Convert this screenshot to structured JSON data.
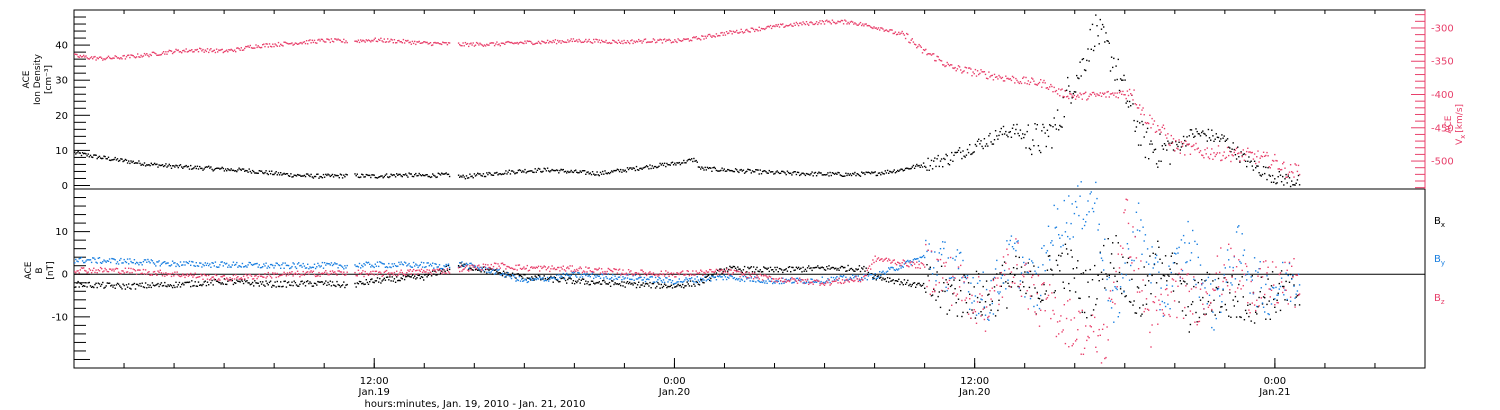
{
  "xaxis": {
    "title": "hours:minutes, Jan. 19, 2010 - Jan. 21, 2010",
    "range_hours": [
      0,
      54
    ],
    "ticks": [
      {
        "t": 12,
        "time": "12:00",
        "date": "Jan.19"
      },
      {
        "t": 24,
        "time": "0:00",
        "date": "Jan.20"
      },
      {
        "t": 36,
        "time": "12:00",
        "date": "Jan.20"
      },
      {
        "t": 48,
        "time": "0:00",
        "date": "Jan.21"
      }
    ]
  },
  "colors": {
    "black": "#000000",
    "blue": "#1a7fe0",
    "pink": "#e8406b"
  },
  "chart_data": [
    {
      "type": "scatter",
      "panel": "top",
      "ylabel_left": [
        "ACE",
        "Ion Density",
        "[cm⁻³]"
      ],
      "ylabel_right": [
        "ACE",
        "V",
        "[km/s]"
      ],
      "ylabel_right_sub": "x",
      "ylim_left": [
        -1,
        50
      ],
      "ylim_right": [
        -542,
        -273
      ],
      "yticks_left": [
        0,
        10,
        20,
        30,
        40
      ],
      "yticks_right": [
        -300,
        -350,
        -400,
        -450,
        -500
      ],
      "series": [
        {
          "name": "Ion Density",
          "axis": "left",
          "color": "#000000",
          "points": [
            [
              0,
              9.5
            ],
            [
              1,
              8.2
            ],
            [
              2,
              7.2
            ],
            [
              3,
              6.2
            ],
            [
              4,
              5.6
            ],
            [
              5,
              5.2
            ],
            [
              6,
              4.8
            ],
            [
              7,
              4.4
            ],
            [
              8,
              3.6
            ],
            [
              9,
              3.0
            ],
            [
              10,
              2.8
            ],
            [
              11,
              3.0
            ],
            [
              12,
              2.8
            ],
            [
              13,
              3.2
            ],
            [
              14,
              3.0
            ],
            [
              15,
              3.2
            ],
            [
              15.5,
              2.6
            ],
            [
              17,
              3.8
            ],
            [
              18,
              4.4
            ],
            [
              19,
              4.6
            ],
            [
              20,
              4.0
            ],
            [
              21,
              3.6
            ],
            [
              22,
              4.6
            ],
            [
              23,
              5.6
            ],
            [
              24,
              6.4
            ],
            [
              24.8,
              7.6
            ],
            [
              25,
              5.0
            ],
            [
              26,
              4.6
            ],
            [
              27,
              4.2
            ],
            [
              28,
              3.8
            ],
            [
              29,
              3.6
            ],
            [
              30,
              3.4
            ],
            [
              31,
              3.3
            ],
            [
              32,
              3.6
            ],
            [
              33,
              4.6
            ],
            [
              34,
              6.2
            ],
            [
              35,
              8.0
            ],
            [
              35.8,
              11
            ],
            [
              36.5,
              13
            ],
            [
              37,
              15
            ],
            [
              37.6,
              16
            ],
            [
              38,
              14
            ],
            [
              38.7,
              13
            ],
            [
              39.3,
              17.5
            ],
            [
              39.7,
              27
            ],
            [
              40.2,
              33
            ],
            [
              40.8,
              45
            ],
            [
              41.5,
              36
            ],
            [
              42,
              26
            ],
            [
              42.7,
              13
            ],
            [
              43.3,
              10
            ],
            [
              44,
              11
            ],
            [
              44.7,
              15
            ],
            [
              45.3,
              14.5
            ],
            [
              46,
              13
            ],
            [
              46.7,
              7.8
            ],
            [
              47.3,
              5
            ],
            [
              48,
              2.5
            ],
            [
              48.6,
              1.6
            ],
            [
              49,
              1.2
            ]
          ]
        },
        {
          "name": "Vx",
          "axis": "right",
          "color": "#e8406b",
          "points": [
            [
              0,
              -341
            ],
            [
              1,
              -345
            ],
            [
              2,
              -343
            ],
            [
              3,
              -339
            ],
            [
              4,
              -334
            ],
            [
              5,
              -332
            ],
            [
              6,
              -334
            ],
            [
              6.8,
              -330
            ],
            [
              7,
              -327
            ],
            [
              8,
              -324
            ],
            [
              9,
              -321
            ],
            [
              10,
              -318
            ],
            [
              11,
              -319
            ],
            [
              12,
              -317
            ],
            [
              13,
              -319
            ],
            [
              14,
              -322
            ],
            [
              15,
              -323
            ],
            [
              15.5,
              -324
            ],
            [
              17,
              -323
            ],
            [
              18,
              -321
            ],
            [
              19,
              -320
            ],
            [
              20,
              -318
            ],
            [
              21,
              -319
            ],
            [
              22,
              -320
            ],
            [
              23,
              -318
            ],
            [
              24,
              -319
            ],
            [
              25,
              -314
            ],
            [
              26,
              -307
            ],
            [
              27,
              -302
            ],
            [
              28,
              -297
            ],
            [
              29,
              -293
            ],
            [
              30,
              -290
            ],
            [
              31,
              -290
            ],
            [
              31.5,
              -294
            ],
            [
              32.3,
              -300
            ],
            [
              33.3,
              -313
            ],
            [
              33.8,
              -331
            ],
            [
              34.4,
              -343
            ],
            [
              35,
              -358
            ],
            [
              36,
              -366
            ],
            [
              37,
              -373
            ],
            [
              38,
              -379
            ],
            [
              38.8,
              -383
            ],
            [
              39.3,
              -395
            ],
            [
              40,
              -402
            ],
            [
              41,
              -400
            ],
            [
              42,
              -397
            ],
            [
              42.2,
              -391
            ],
            [
              42.8,
              -433
            ],
            [
              43.5,
              -455
            ],
            [
              44,
              -476
            ],
            [
              45,
              -485
            ],
            [
              46,
              -488
            ],
            [
              47,
              -491
            ],
            [
              48,
              -500
            ],
            [
              48.5,
              -515
            ],
            [
              49,
              -512
            ]
          ]
        }
      ]
    },
    {
      "type": "scatter",
      "panel": "bottom",
      "ylabel_left": [
        "ACE",
        "B",
        "[nT]"
      ],
      "ylim": [
        -22,
        20
      ],
      "yticks": [
        10,
        0,
        -10
      ],
      "zero_line": true,
      "series": [
        {
          "name": "Bx",
          "label": "B",
          "sub": "x",
          "color": "#000000",
          "points": [
            [
              0,
              -2.2
            ],
            [
              2,
              -2.7
            ],
            [
              4,
              -2.3
            ],
            [
              6,
              -1.6
            ],
            [
              8,
              -2.2
            ],
            [
              10,
              -2.0
            ],
            [
              11,
              -2.5
            ],
            [
              12,
              -1.4
            ],
            [
              14,
              -0.5
            ],
            [
              15,
              1.8
            ],
            [
              15.5,
              2.2
            ],
            [
              17,
              0.4
            ],
            [
              18,
              -0.5
            ],
            [
              20,
              -1.5
            ],
            [
              22,
              -2.2
            ],
            [
              24,
              -2.6
            ],
            [
              25,
              -1.8
            ],
            [
              26,
              1.4
            ],
            [
              28,
              1.1
            ],
            [
              30,
              1.6
            ],
            [
              31.5,
              1.5
            ],
            [
              32,
              -0.4
            ],
            [
              34,
              -2.8
            ],
            [
              35,
              -4.5
            ],
            [
              36.5,
              -5.0
            ],
            [
              37.5,
              -1.0
            ],
            [
              38.5,
              -3.5
            ],
            [
              39.5,
              3
            ],
            [
              40.5,
              -5
            ],
            [
              41.5,
              6
            ],
            [
              42.5,
              -7
            ],
            [
              43.5,
              5
            ],
            [
              44.5,
              -8
            ],
            [
              45.5,
              -4
            ],
            [
              46.5,
              -6
            ],
            [
              47.5,
              -5
            ],
            [
              48.5,
              -4.5
            ],
            [
              49,
              -4
            ]
          ]
        },
        {
          "name": "By",
          "label": "B",
          "sub": "y",
          "color": "#1a7fe0",
          "points": [
            [
              0,
              3.5
            ],
            [
              2,
              3.2
            ],
            [
              4,
              2.6
            ],
            [
              6,
              2.4
            ],
            [
              8,
              2.1
            ],
            [
              10,
              2.2
            ],
            [
              11,
              2.1
            ],
            [
              12,
              2.4
            ],
            [
              14,
              2.3
            ],
            [
              15,
              2.0
            ],
            [
              15.5,
              2.5
            ],
            [
              17,
              0.5
            ],
            [
              18,
              -1.5
            ],
            [
              20,
              0
            ],
            [
              22,
              -0.5
            ],
            [
              24,
              -1.5
            ],
            [
              26,
              -0.5
            ],
            [
              28,
              -1.5
            ],
            [
              30,
              -1.2
            ],
            [
              32,
              -0.3
            ],
            [
              34,
              4.4
            ],
            [
              35,
              2
            ],
            [
              36.5,
              -6
            ],
            [
              37.5,
              5
            ],
            [
              38.5,
              -4
            ],
            [
              39,
              10
            ],
            [
              40,
              15
            ],
            [
              40.8,
              18
            ],
            [
              41.5,
              -10
            ],
            [
              42.5,
              12
            ],
            [
              43.5,
              -6
            ],
            [
              44.5,
              8
            ],
            [
              45.5,
              -8
            ],
            [
              46.5,
              6
            ],
            [
              47.5,
              -4
            ],
            [
              48.5,
              -2
            ],
            [
              49,
              0
            ]
          ]
        },
        {
          "name": "Bz",
          "label": "B",
          "sub": "z",
          "color": "#e8406b",
          "points": [
            [
              0,
              1.2
            ],
            [
              2,
              1.0
            ],
            [
              4,
              0.2
            ],
            [
              6,
              -0.8
            ],
            [
              8,
              0
            ],
            [
              10,
              0.4
            ],
            [
              11,
              0.5
            ],
            [
              12,
              0.2
            ],
            [
              14,
              0.8
            ],
            [
              15,
              1.0
            ],
            [
              15.5,
              1.5
            ],
            [
              17,
              2.2
            ],
            [
              18,
              1.6
            ],
            [
              20,
              1.4
            ],
            [
              22,
              0.6
            ],
            [
              24,
              0.2
            ],
            [
              26,
              0.8
            ],
            [
              28,
              -1
            ],
            [
              30,
              -1.8
            ],
            [
              31.5,
              -1.0
            ],
            [
              32,
              3.8
            ],
            [
              34,
              2
            ],
            [
              35,
              -1
            ],
            [
              36.5,
              -8
            ],
            [
              37.5,
              4
            ],
            [
              38.5,
              -6
            ],
            [
              39.5,
              -10
            ],
            [
              40.5,
              -14
            ],
            [
              41.2,
              -16
            ],
            [
              42,
              14
            ],
            [
              43,
              -12
            ],
            [
              44,
              -4
            ],
            [
              45,
              -6
            ],
            [
              46,
              2
            ],
            [
              47,
              -3
            ],
            [
              48,
              -2.5
            ],
            [
              49,
              -2
            ]
          ]
        }
      ]
    }
  ]
}
